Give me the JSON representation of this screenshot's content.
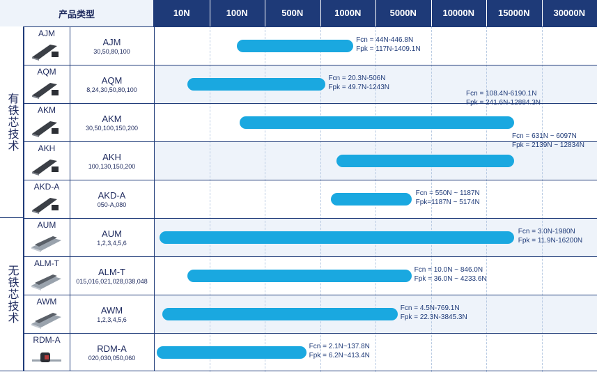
{
  "chart_data": {
    "type": "bar",
    "header_label": "产品类型",
    "force_levels": [
      "10N",
      "100N",
      "500N",
      "1000N",
      "5000N",
      "10000N",
      "15000N",
      "30000N"
    ],
    "groups": [
      {
        "label": "有铁芯技术",
        "rows": [
          0,
          4
        ]
      },
      {
        "label": "无铁芯技术",
        "rows": [
          5,
          8
        ]
      }
    ],
    "rows": [
      {
        "series": "AJM",
        "model": "AJM",
        "sizes": "30,50,80,100",
        "fcn": "Fcn = 44N-446.8N",
        "fpk": "Fpk = 117N-1409.1N",
        "range": [
          1.5,
          3.6
        ]
      },
      {
        "series": "AQM",
        "model": "AQM",
        "sizes": "8,24,30,50,80,100",
        "fcn": "Fcn = 20.3N-506N",
        "fpk": "Fpk = 49.7N-1243N",
        "range": [
          0.6,
          3.1
        ]
      },
      {
        "series": "AKM",
        "model": "AKM",
        "sizes": "30,50,100,150,200",
        "fcn": "Fcn = 108.4N-6190.1N",
        "fpk": "Fpk = 241.6N-12884.3N",
        "range": [
          1.55,
          6.5
        ]
      },
      {
        "series": "AKH",
        "model": "AKH",
        "sizes": "100,130,150,200",
        "fcn": "Fcn = 631N ~ 6097N",
        "fpk": "Fpk = 2139N ~ 12834N",
        "range": [
          3.3,
          6.5
        ]
      },
      {
        "series": "AKD-A",
        "model": "AKD-A",
        "sizes": "050-A,080",
        "fcn": "Fcn = 550N ~ 1187N",
        "fpk": "Fpk=1187N ~ 5174N",
        "range": [
          3.2,
          4.65
        ]
      },
      {
        "series": "AUM",
        "model": "AUM",
        "sizes": "1,2,3,4,5,6",
        "fcn": "Fcn = 3.0N-1980N",
        "fpk": "Fpk = 11.9N-16200N",
        "range": [
          0.1,
          6.5
        ]
      },
      {
        "series": "ALM-T",
        "model": "ALM-T",
        "sizes": "015,016,021,028,038,048",
        "fcn": "Fcn = 10.0N ~ 846.0N",
        "fpk": "Fpk = 36.0N ~ 4233.6N",
        "range": [
          0.6,
          4.65
        ]
      },
      {
        "series": "AWM",
        "model": "AWM",
        "sizes": "1,2,3,4,5,6",
        "fcn": "Fcn = 4.5N-769.1N",
        "fpk": "Fpk = 22.3N-3845.3N",
        "range": [
          0.15,
          4.4
        ]
      },
      {
        "series": "RDM-A",
        "model": "RDM-A",
        "sizes": "020,030,050,060",
        "fcn": "Fcn = 2.1N~137.8N",
        "fpk": "Fpk = 6.2N~413.4N",
        "range": [
          0.05,
          2.75
        ]
      }
    ],
    "colors": {
      "bar": "#1aa8e0",
      "header": "#1e3a78",
      "row_alt": "#eef3fa",
      "text": "#1e2a5e"
    }
  }
}
